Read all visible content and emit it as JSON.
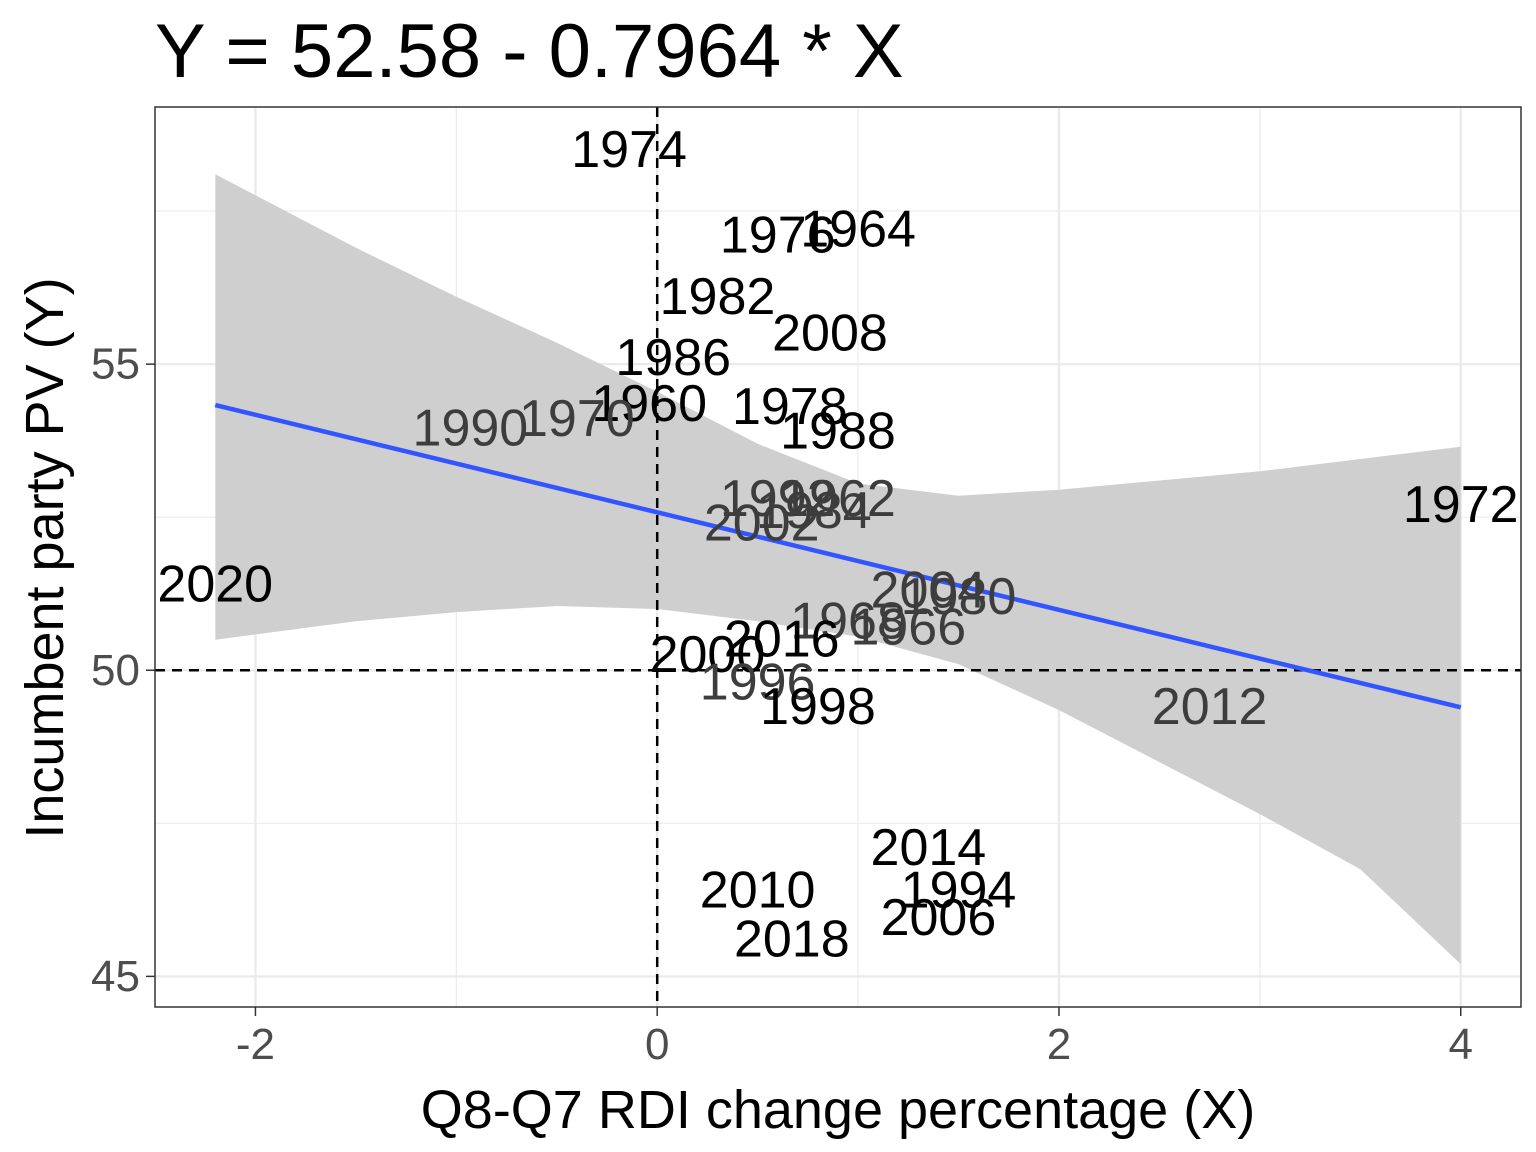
{
  "chart_data": {
    "type": "scatter",
    "title": "Y = 52.58 - 0.7964  * X",
    "xlabel": "Q8-Q7 RDI change percentage (X)",
    "ylabel": "Incumbent party PV (Y)",
    "xlim": [
      -2.5,
      4.3
    ],
    "ylim": [
      44.5,
      59.2
    ],
    "x_ticks": [
      -2,
      0,
      2,
      4
    ],
    "y_ticks": [
      45,
      50,
      55
    ],
    "grid": true,
    "reference_lines": {
      "x": 0,
      "y": 50
    },
    "regression": {
      "intercept": 52.58,
      "slope": -0.7964,
      "x_range": [
        -2.2,
        4.0
      ],
      "confidence_band": [
        {
          "x": -2.2,
          "lo": 50.5,
          "hi": 58.1
        },
        {
          "x": -1.5,
          "lo": 50.8,
          "hi": 56.9
        },
        {
          "x": -1.0,
          "lo": 50.95,
          "hi": 56.1
        },
        {
          "x": -0.5,
          "lo": 51.05,
          "hi": 55.35
        },
        {
          "x": 0.0,
          "lo": 51.0,
          "hi": 54.55
        },
        {
          "x": 0.5,
          "lo": 50.8,
          "hi": 53.7
        },
        {
          "x": 1.0,
          "lo": 50.55,
          "hi": 53.05
        },
        {
          "x": 1.5,
          "lo": 50.1,
          "hi": 52.85
        },
        {
          "x": 2.0,
          "lo": 49.35,
          "hi": 52.95
        },
        {
          "x": 2.5,
          "lo": 48.5,
          "hi": 53.1
        },
        {
          "x": 3.0,
          "lo": 47.65,
          "hi": 53.25
        },
        {
          "x": 3.5,
          "lo": 46.75,
          "hi": 53.45
        },
        {
          "x": 4.0,
          "lo": 45.2,
          "hi": 53.65
        }
      ]
    },
    "points": [
      {
        "label": "1974",
        "x": -0.14,
        "y": 58.5,
        "shade": "dark"
      },
      {
        "label": "1976",
        "x": 0.6,
        "y": 57.1,
        "shade": "dark"
      },
      {
        "label": "1964",
        "x": 1.0,
        "y": 57.2,
        "shade": "dark"
      },
      {
        "label": "1982",
        "x": 0.3,
        "y": 56.1,
        "shade": "dark"
      },
      {
        "label": "2008",
        "x": 0.86,
        "y": 55.5,
        "shade": "dark"
      },
      {
        "label": "1986",
        "x": 0.08,
        "y": 55.1,
        "shade": "dark"
      },
      {
        "label": "1960",
        "x": -0.04,
        "y": 54.35,
        "shade": "dark"
      },
      {
        "label": "1978",
        "x": 0.66,
        "y": 54.3,
        "shade": "dark"
      },
      {
        "label": "1970",
        "x": -0.4,
        "y": 54.1,
        "shade": "gray"
      },
      {
        "label": "1990",
        "x": -0.93,
        "y": 53.95,
        "shade": "gray"
      },
      {
        "label": "1988",
        "x": 0.9,
        "y": 53.9,
        "shade": "dark"
      },
      {
        "label": "1992",
        "x": 0.6,
        "y": 52.8,
        "shade": "gray"
      },
      {
        "label": "1962",
        "x": 0.9,
        "y": 52.8,
        "shade": "gray"
      },
      {
        "label": "1984",
        "x": 0.78,
        "y": 52.6,
        "shade": "gray"
      },
      {
        "label": "2002",
        "x": 0.52,
        "y": 52.4,
        "shade": "gray"
      },
      {
        "label": "1972",
        "x": 4.0,
        "y": 52.7,
        "shade": "dark"
      },
      {
        "label": "2020",
        "x": -2.2,
        "y": 51.4,
        "shade": "dark"
      },
      {
        "label": "2004",
        "x": 1.35,
        "y": 51.3,
        "shade": "gray"
      },
      {
        "label": "1980",
        "x": 1.5,
        "y": 51.2,
        "shade": "gray"
      },
      {
        "label": "1968",
        "x": 0.95,
        "y": 50.8,
        "shade": "gray"
      },
      {
        "label": "1966",
        "x": 1.25,
        "y": 50.7,
        "shade": "gray"
      },
      {
        "label": "2016",
        "x": 0.62,
        "y": 50.5,
        "shade": "dark"
      },
      {
        "label": "2000",
        "x": 0.25,
        "y": 50.25,
        "shade": "dark"
      },
      {
        "label": "1996",
        "x": 0.5,
        "y": 49.8,
        "shade": "gray"
      },
      {
        "label": "1998",
        "x": 0.8,
        "y": 49.4,
        "shade": "dark"
      },
      {
        "label": "2012",
        "x": 2.75,
        "y": 49.4,
        "shade": "gray"
      },
      {
        "label": "2014",
        "x": 1.35,
        "y": 47.1,
        "shade": "dark"
      },
      {
        "label": "1994",
        "x": 1.5,
        "y": 46.4,
        "shade": "dark"
      },
      {
        "label": "2010",
        "x": 0.5,
        "y": 46.4,
        "shade": "dark"
      },
      {
        "label": "2006",
        "x": 1.4,
        "y": 45.95,
        "shade": "dark"
      },
      {
        "label": "2018",
        "x": 0.67,
        "y": 45.6,
        "shade": "dark"
      }
    ],
    "colors": {
      "line": "#3355ff",
      "band": "#cfcfcf",
      "panel_border": "#333333",
      "grid": "#ebebeb",
      "reference": "#000000",
      "label_dark": "#000000",
      "label_gray": "#3d3d3d",
      "tick": "#4d4d4d"
    }
  }
}
